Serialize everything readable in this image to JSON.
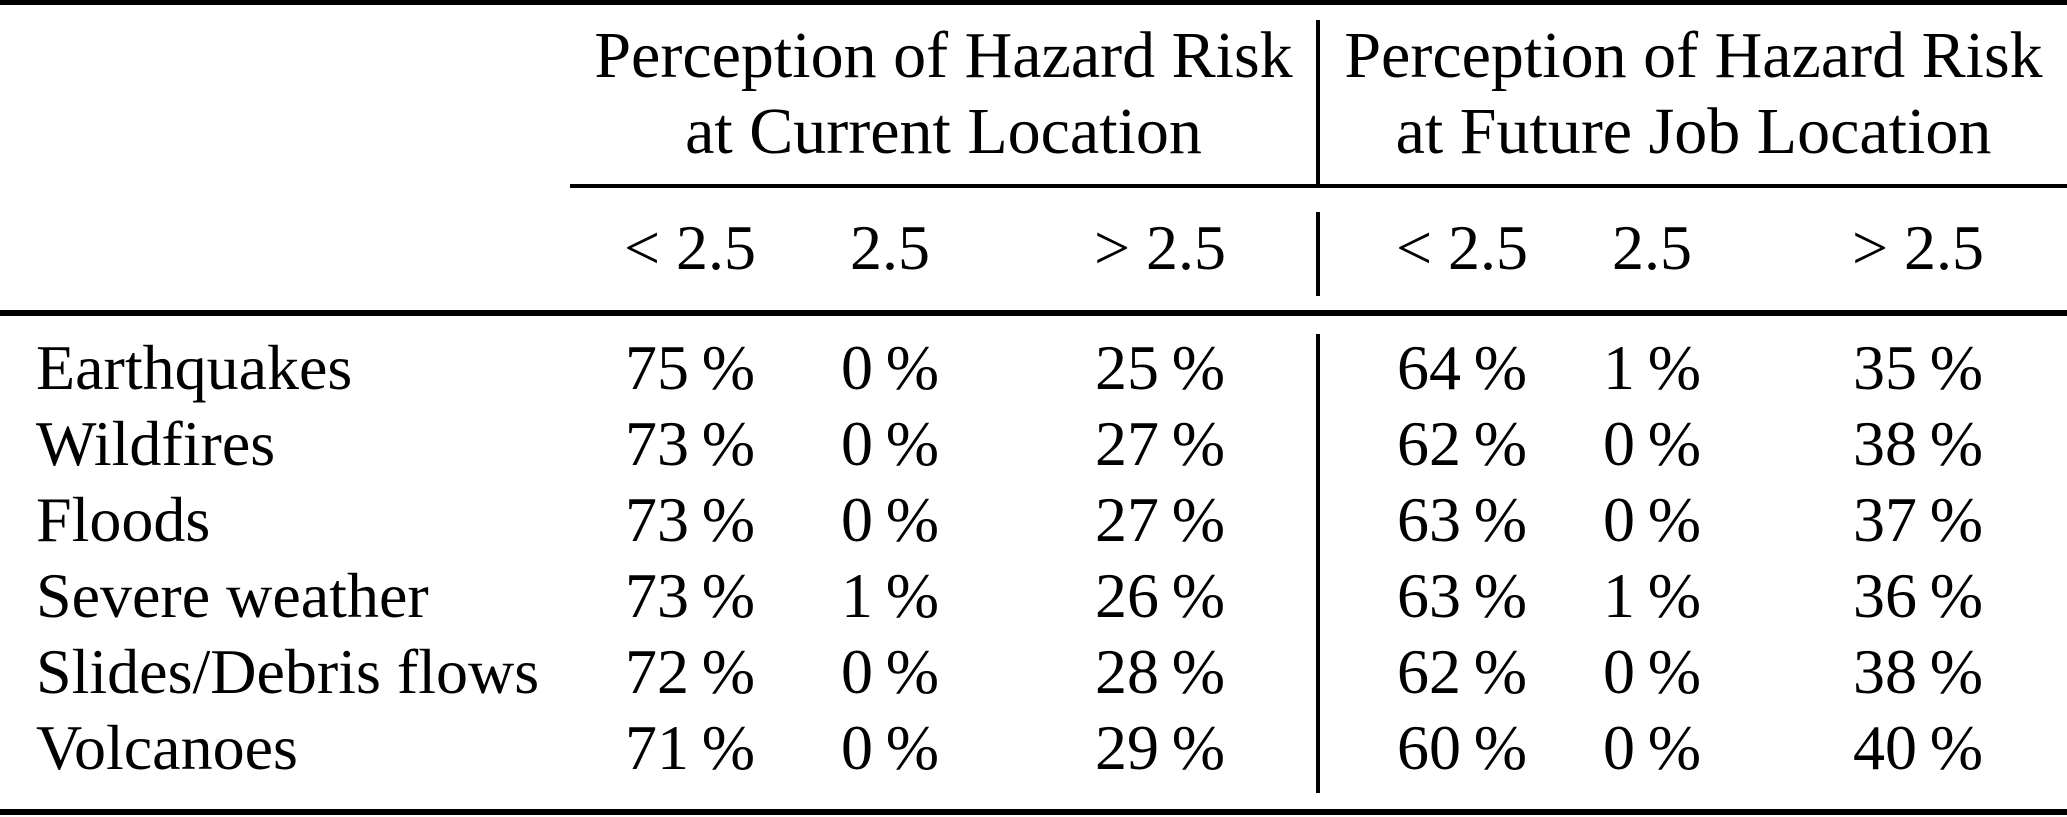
{
  "table": {
    "col_groups": [
      {
        "line1": "Perception of Hazard Risk",
        "line2": "at Current Location"
      },
      {
        "line1": "Perception of Hazard Risk",
        "line2": "at Future Job Location"
      }
    ],
    "subheaders": [
      "< 2.5",
      "2.5",
      "> 2.5",
      "< 2.5",
      "2.5",
      "> 2.5"
    ],
    "rows": [
      {
        "label": "Earthquakes",
        "values": [
          "75 %",
          "0 %",
          "25 %",
          "64 %",
          "1 %",
          "35 %"
        ]
      },
      {
        "label": "Wildfires",
        "values": [
          "73 %",
          "0 %",
          "27 %",
          "62 %",
          "0 %",
          "38 %"
        ]
      },
      {
        "label": "Floods",
        "values": [
          "73 %",
          "0 %",
          "27 %",
          "63 %",
          "0 %",
          "37 %"
        ]
      },
      {
        "label": "Severe weather",
        "values": [
          "73 %",
          "1 %",
          "26 %",
          "63 %",
          "1 %",
          "36 %"
        ]
      },
      {
        "label": "Slides/Debris flows",
        "values": [
          "72 %",
          "0 %",
          "28 %",
          "62 %",
          "0 %",
          "38 %"
        ]
      },
      {
        "label": "Volcanoes",
        "values": [
          "71 %",
          "0 %",
          "29 %",
          "60 %",
          "0 %",
          "40 %"
        ]
      }
    ],
    "colors": {
      "text": "#000000",
      "background": "#ffffff",
      "rule": "#000000"
    }
  }
}
